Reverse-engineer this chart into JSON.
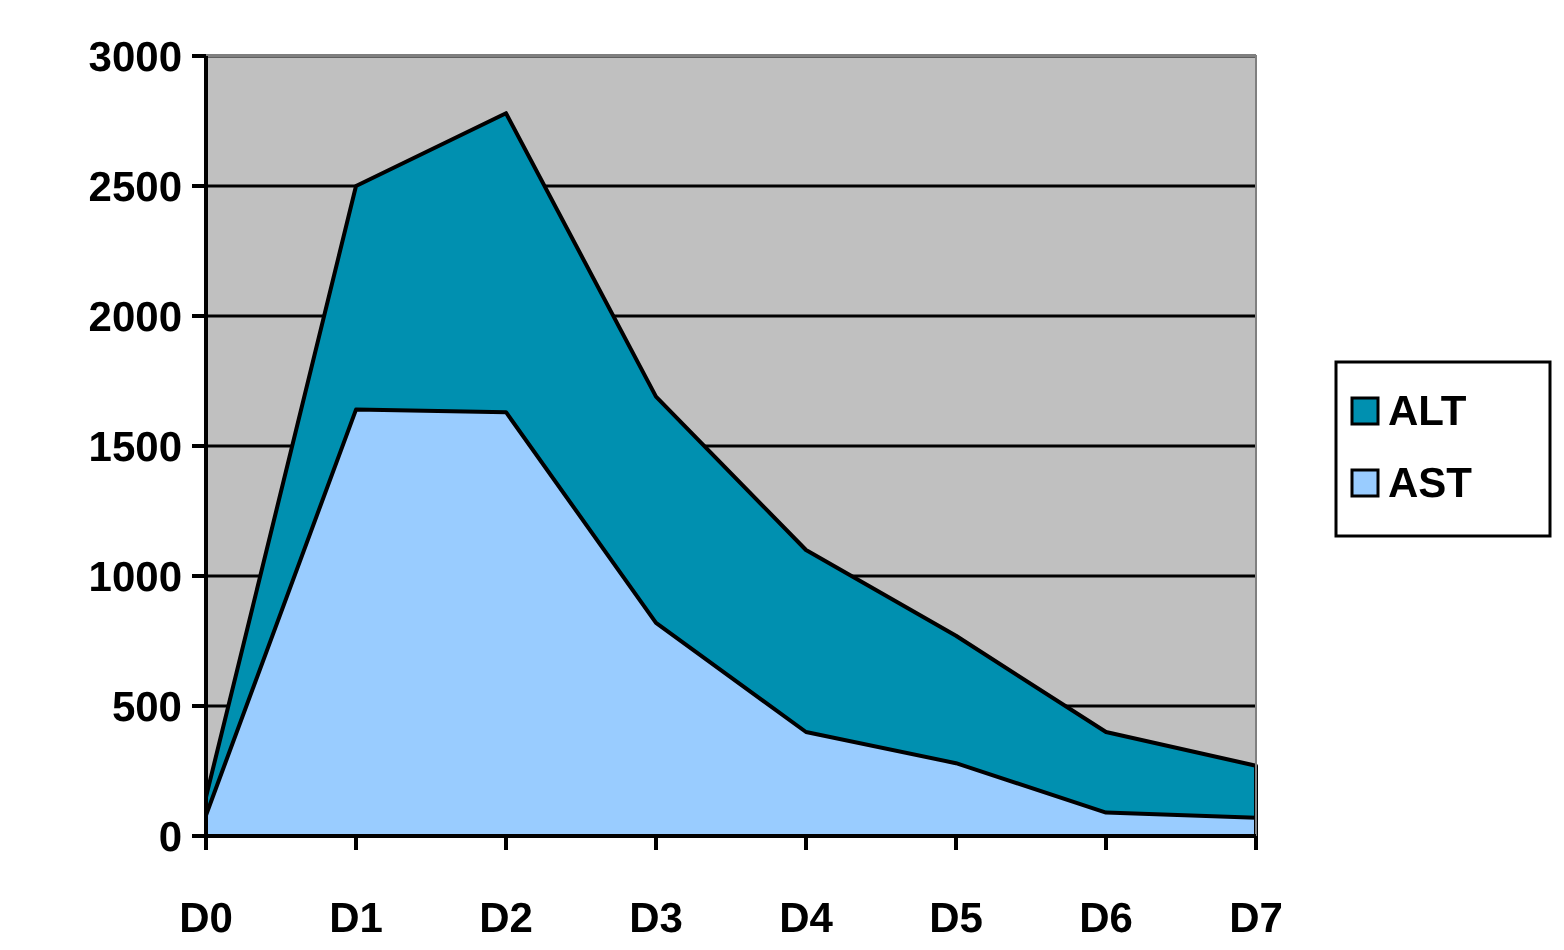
{
  "chart_data": {
    "type": "area",
    "categories": [
      "D0",
      "D1",
      "D2",
      "D3",
      "D4",
      "D5",
      "D6",
      "D7"
    ],
    "series": [
      {
        "name": "ALT",
        "color": "#0090b0",
        "values": [
          150,
          2500,
          2780,
          1690,
          1100,
          770,
          400,
          270
        ]
      },
      {
        "name": "AST",
        "color": "#99ccff",
        "values": [
          80,
          1640,
          1630,
          820,
          400,
          280,
          90,
          70
        ]
      }
    ],
    "ylim": [
      0,
      3000
    ],
    "yticks": [
      0,
      500,
      1000,
      1500,
      2000,
      2500,
      3000
    ],
    "grid": "y",
    "legend": "right"
  }
}
